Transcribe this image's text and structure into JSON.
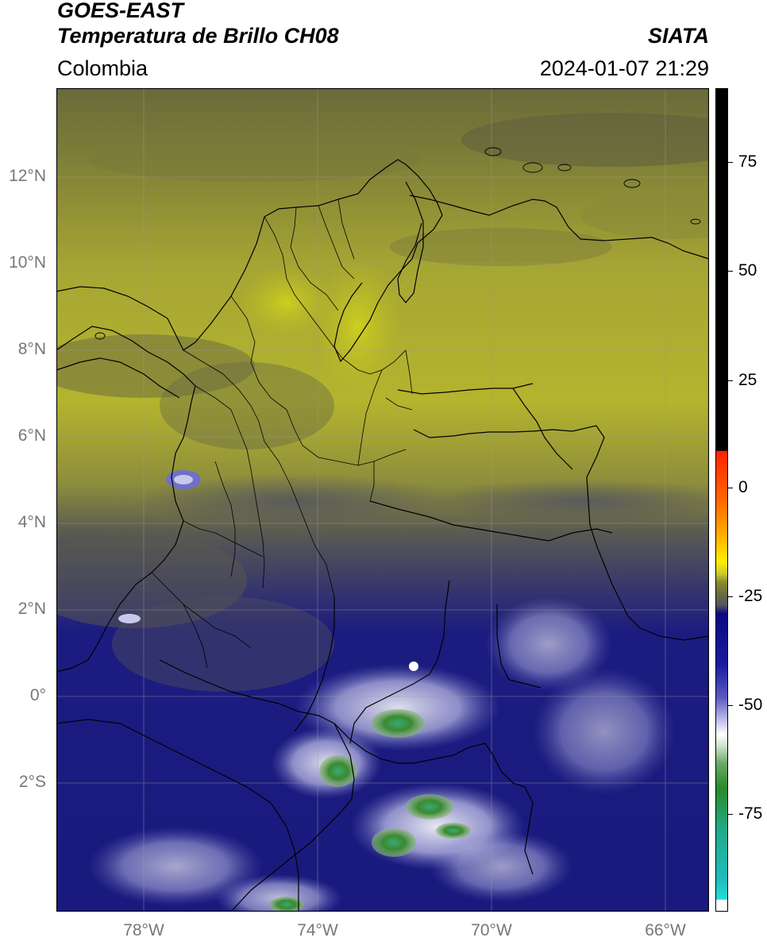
{
  "header": {
    "title_line1": "GOES-EAST",
    "title_line2": "Temperatura de Brillo CH08",
    "region": "Colombia",
    "agency": "SIATA",
    "timestamp": "2024-01-07 21:29"
  },
  "map": {
    "lat_labels": [
      "12°N",
      "10°N",
      "8°N",
      "6°N",
      "4°N",
      "2°N",
      "0°",
      "2°S"
    ],
    "lon_labels": [
      "78°W",
      "74°W",
      "70°W",
      "66°W"
    ]
  },
  "colorbar": {
    "tick_labels": [
      "75",
      "50",
      "25",
      "0",
      "-25",
      "-50",
      "-75"
    ],
    "colors": {
      "black": "#000000",
      "red": "#ff2200",
      "orange": "#ff8800",
      "yellow": "#ffee00",
      "olive": "#8a8a30",
      "gray": "#555560",
      "navy": "#0a0a80",
      "lavender": "#c8c8ee",
      "white": "#ffffff",
      "green": "#2a8a2a",
      "teal": "#22aa88",
      "cyan": "#22dddd"
    }
  }
}
